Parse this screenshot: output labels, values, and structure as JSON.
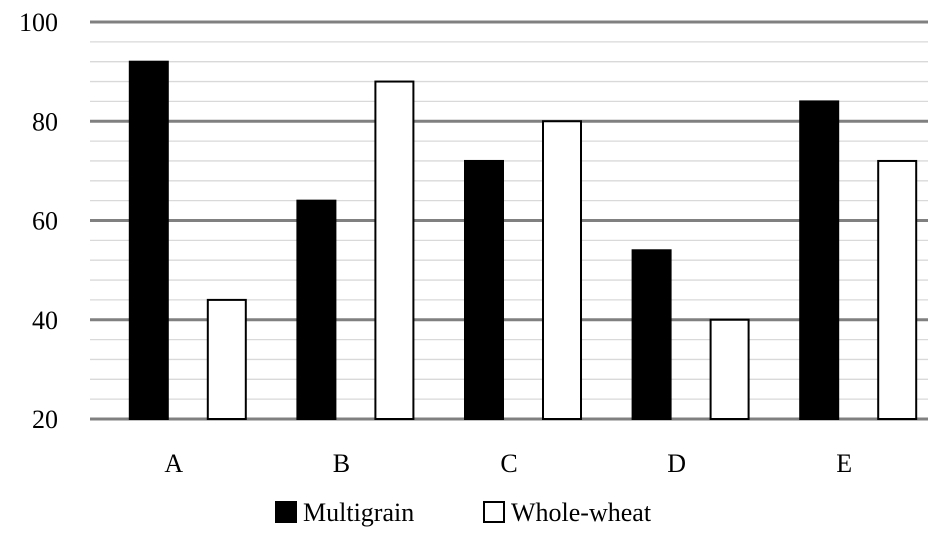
{
  "chart_data": {
    "type": "bar",
    "categories": [
      "A",
      "B",
      "C",
      "D",
      "E"
    ],
    "series": [
      {
        "name": "Multigrain",
        "values": [
          92,
          64,
          72,
          54,
          84
        ],
        "color": "#000000"
      },
      {
        "name": "Whole-wheat",
        "values": [
          44,
          88,
          80,
          40,
          72
        ],
        "color": "#ffffff"
      }
    ],
    "ylim": [
      20,
      100
    ],
    "yticks": [
      20,
      40,
      60,
      80,
      100
    ],
    "ytick_labels": [
      "20",
      "40",
      "60",
      "80",
      "100"
    ],
    "minor_step": 4,
    "grid": true,
    "legend_position": "bottom",
    "title": "",
    "xlabel": "",
    "ylabel": ""
  }
}
